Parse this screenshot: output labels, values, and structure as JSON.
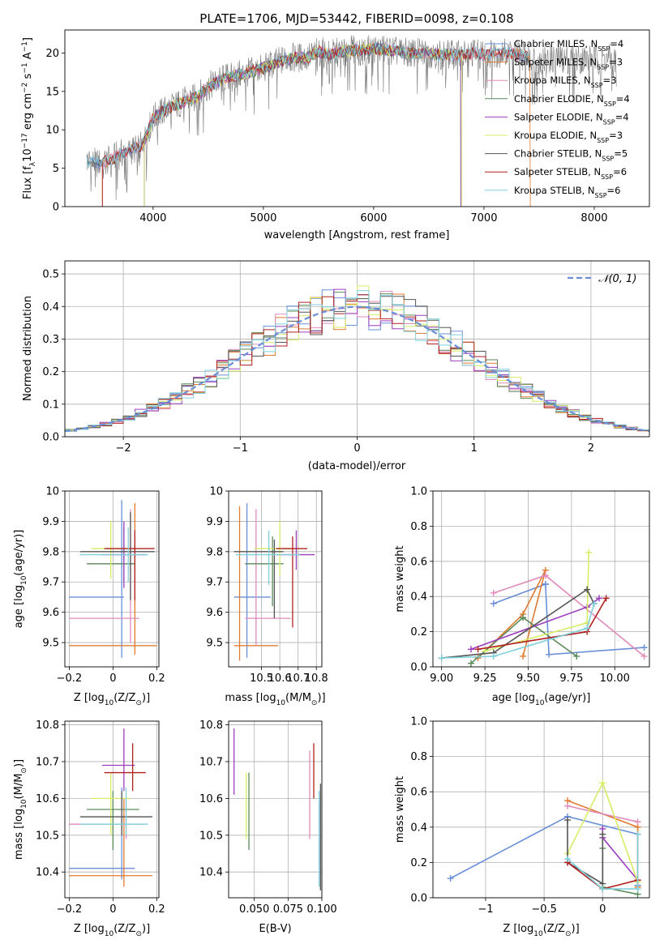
{
  "figure_title": "PLATE=1706, MJD=53442, FIBERID=0098, z=0.108",
  "colors": {
    "chabrier_miles": "#6a8fd8",
    "salpeter_miles": "#e07b30",
    "kroupa_miles": "#e08aba",
    "chabrier_elodie": "#5a8a5a",
    "salpeter_elodie": "#9b3fbf",
    "kroupa_elodie": "#d8ec64",
    "chabrier_stelib": "#555555",
    "salpeter_stelib": "#b02020",
    "kroupa_stelib": "#80d0dc",
    "grid": "#b0b0b0",
    "gaussian": "#6a8fd8"
  },
  "chart_data": [
    {
      "id": "spectrum",
      "type": "line",
      "title": "PLATE=1706, MJD=53442, FIBERID=0098, z=0.108",
      "xlabel": "wavelength [Angstrom, rest frame]",
      "ylabel_parts": [
        "Flux [f",
        "λ",
        "10",
        "−17",
        " erg cm",
        "−2",
        " s",
        "−1",
        " A",
        "−1",
        "]"
      ],
      "xlim": [
        3200,
        8500
      ],
      "ylim": [
        0,
        23
      ],
      "xticks": [
        4000,
        5000,
        6000,
        7000,
        8000
      ],
      "yticks": [
        0,
        5,
        10,
        15,
        20
      ],
      "grid": false,
      "legend_position": "right",
      "continuum": {
        "x": [
          3400,
          3500,
          3600,
          3700,
          3800,
          3900,
          4000,
          4100,
          4200,
          4300,
          4400,
          4500,
          4600,
          4700,
          4800,
          4900,
          5000,
          5100,
          5200,
          5300,
          5400,
          5500,
          5600,
          5700,
          5800,
          5900,
          6000,
          6100,
          6200,
          6300,
          6400,
          6500,
          6600,
          6700,
          6800,
          6900,
          7000,
          7100,
          7200,
          7300,
          7400
        ],
        "y": [
          6.0,
          5.6,
          6.0,
          6.8,
          7.3,
          7.8,
          11.5,
          12.5,
          13.2,
          13.8,
          14.2,
          15.6,
          16.4,
          17.0,
          17.2,
          17.6,
          18.0,
          18.6,
          19.2,
          19.4,
          19.4,
          20.2,
          19.8,
          20.1,
          20.4,
          20.3,
          20.6,
          20.4,
          20.2,
          20.0,
          20.0,
          20.0,
          19.8,
          19.8,
          19.7,
          20.0,
          19.8,
          20.0,
          20.0,
          19.8,
          19.6
        ]
      },
      "series": [
        {
          "name": "Chabrier MILES",
          "nssp": "4",
          "color_key": "chabrier_miles",
          "x_range": [
            3400,
            7400
          ]
        },
        {
          "name": "Salpeter MILES",
          "nssp": "3",
          "color_key": "salpeter_miles",
          "x_range": [
            3540,
            7420
          ]
        },
        {
          "name": "Kroupa MILES",
          "nssp": "3",
          "color_key": "kroupa_miles",
          "x_range": [
            3540,
            7400
          ]
        },
        {
          "name": "Chabrier ELODIE",
          "nssp": "4",
          "color_key": "chabrier_elodie",
          "x_range": [
            3920,
            6790
          ]
        },
        {
          "name": "Salpeter ELODIE",
          "nssp": "4",
          "color_key": "salpeter_elodie",
          "x_range": [
            3920,
            6790
          ]
        },
        {
          "name": "Kroupa ELODIE",
          "nssp": "3",
          "color_key": "kroupa_elodie",
          "x_range": [
            3920,
            6800
          ]
        },
        {
          "name": "Chabrier STELIB",
          "nssp": "5",
          "color_key": "chabrier_stelib",
          "x_range": [
            3400,
            7400
          ]
        },
        {
          "name": "Salpeter STELIB",
          "nssp": "6",
          "color_key": "salpeter_stelib",
          "x_range": [
            3540,
            7400
          ]
        },
        {
          "name": "Kroupa STELIB",
          "nssp": "6",
          "color_key": "kroupa_stelib",
          "x_range": [
            3400,
            7400
          ]
        }
      ]
    },
    {
      "id": "residuals",
      "type": "histogram",
      "xlabel": "(data-model)/error",
      "ylabel": "Normed distribution",
      "xlim": [
        -2.5,
        2.5
      ],
      "ylim": [
        0,
        0.54
      ],
      "xticks": [
        -2,
        -1,
        0,
        1,
        2
      ],
      "yticks": [
        0.0,
        0.1,
        0.2,
        0.3,
        0.4,
        0.5
      ],
      "grid": true,
      "legend_position": "top-right",
      "gaussian_label": "𝒩(0, 1)",
      "bin_width": 0.1,
      "series_keys": [
        "chabrier_miles",
        "salpeter_miles",
        "kroupa_miles",
        "chabrier_elodie",
        "salpeter_elodie",
        "kroupa_elodie",
        "chabrier_stelib",
        "salpeter_stelib",
        "kroupa_stelib"
      ]
    },
    {
      "id": "age-vs-z",
      "type": "errorbar",
      "xlabel_parts": [
        "Z [log",
        "10",
        "(Z/Z",
        "⊙",
        ")]"
      ],
      "ylabel_parts": [
        "age  [log",
        "10",
        "(age/yr)]"
      ],
      "xlim": [
        -0.22,
        0.21
      ],
      "ylim": [
        9.42,
        10.0
      ],
      "xticks": [
        -0.2,
        0.0,
        0.2
      ],
      "yticks": [
        9.5,
        9.6,
        9.7,
        9.8,
        9.9,
        10.0
      ],
      "grid": true,
      "points": [
        {
          "color_key": "chabrier_miles",
          "x": 0.04,
          "y": 9.65,
          "xlo": -0.2,
          "xhi": 0.05,
          "ylo": 9.45,
          "yhi": 9.97
        },
        {
          "color_key": "salpeter_miles",
          "x": 0.1,
          "y": 9.49,
          "xlo": -0.2,
          "xhi": 0.2,
          "ylo": 9.46,
          "yhi": 9.96
        },
        {
          "color_key": "kroupa_miles",
          "x": 0.08,
          "y": 9.58,
          "xlo": -0.2,
          "xhi": 0.12,
          "ylo": 9.5,
          "yhi": 9.94
        },
        {
          "color_key": "chabrier_elodie",
          "x": 0.05,
          "y": 9.76,
          "xlo": -0.12,
          "xhi": 0.1,
          "ylo": 9.7,
          "yhi": 9.88
        },
        {
          "color_key": "salpeter_elodie",
          "x": 0.05,
          "y": 9.79,
          "xlo": -0.05,
          "xhi": 0.15,
          "ylo": 9.68,
          "yhi": 9.9
        },
        {
          "color_key": "kroupa_elodie",
          "x": -0.01,
          "y": 9.81,
          "xlo": -0.1,
          "xhi": 0.09,
          "ylo": 9.71,
          "yhi": 9.9
        },
        {
          "color_key": "chabrier_stelib",
          "x": 0.08,
          "y": 9.8,
          "xlo": -0.15,
          "xhi": 0.19,
          "ylo": 9.64,
          "yhi": 9.93
        },
        {
          "color_key": "salpeter_stelib",
          "x": 0.1,
          "y": 9.81,
          "xlo": -0.04,
          "xhi": 0.19,
          "ylo": 9.64,
          "yhi": 9.87
        },
        {
          "color_key": "kroupa_stelib",
          "x": 0.07,
          "y": 9.79,
          "xlo": -0.15,
          "xhi": 0.16,
          "ylo": 9.7,
          "yhi": 9.88
        }
      ]
    },
    {
      "id": "age-vs-mass",
      "type": "errorbar",
      "xlabel_parts": [
        "mass [log",
        "10",
        "(M/M",
        "⊙",
        ")]"
      ],
      "ylabel_parts": [],
      "xlim": [
        10.32,
        10.83
      ],
      "ylim": [
        9.42,
        10.0
      ],
      "xticks": [
        10.5,
        10.6,
        10.7,
        10.8
      ],
      "yticks": [
        9.5,
        9.6,
        9.7,
        9.8,
        9.9,
        10.0
      ],
      "grid": true,
      "points": [
        {
          "color_key": "chabrier_miles",
          "x": 10.42,
          "y": 9.65,
          "xlo": 10.35,
          "xhi": 10.55,
          "ylo": 9.45,
          "yhi": 9.96
        },
        {
          "color_key": "salpeter_miles",
          "x": 10.38,
          "y": 9.49,
          "xlo": 10.35,
          "xhi": 10.59,
          "ylo": 9.44,
          "yhi": 9.95
        },
        {
          "color_key": "kroupa_miles",
          "x": 10.47,
          "y": 9.58,
          "xlo": 10.41,
          "xhi": 10.66,
          "ylo": 9.49,
          "yhi": 9.94
        },
        {
          "color_key": "chabrier_elodie",
          "x": 10.56,
          "y": 9.76,
          "xlo": 10.41,
          "xhi": 10.62,
          "ylo": 9.62,
          "yhi": 9.85
        },
        {
          "color_key": "salpeter_elodie",
          "x": 10.69,
          "y": 9.79,
          "xlo": 10.58,
          "xhi": 10.79,
          "ylo": 9.74,
          "yhi": 9.87
        },
        {
          "color_key": "kroupa_elodie",
          "x": 10.6,
          "y": 9.81,
          "xlo": 10.46,
          "xhi": 10.67,
          "ylo": 9.72,
          "yhi": 9.9
        },
        {
          "color_key": "chabrier_stelib",
          "x": 10.57,
          "y": 9.8,
          "xlo": 10.35,
          "xhi": 10.62,
          "ylo": 9.58,
          "yhi": 9.84
        },
        {
          "color_key": "salpeter_stelib",
          "x": 10.67,
          "y": 9.81,
          "xlo": 10.58,
          "xhi": 10.75,
          "ylo": 9.55,
          "yhi": 9.85
        },
        {
          "color_key": "kroupa_stelib",
          "x": 10.54,
          "y": 9.79,
          "xlo": 10.36,
          "xhi": 10.71,
          "ylo": 9.69,
          "yhi": 9.87
        }
      ]
    },
    {
      "id": "weight-vs-age",
      "type": "line",
      "xlabel_parts": [
        "age  [log",
        "10",
        "(age/yr)]"
      ],
      "ylabel": "mass weight",
      "xlim": [
        8.95,
        10.2
      ],
      "ylim": [
        0,
        1.0
      ],
      "xticks": [
        9.0,
        9.25,
        9.5,
        9.75,
        10.0
      ],
      "xtick_labels": [
        "9.00",
        "9.25",
        "9.50",
        "9.75",
        "10.00"
      ],
      "yticks": [
        0.0,
        0.2,
        0.4,
        0.6,
        0.8,
        1.0
      ],
      "grid": true,
      "series": [
        {
          "color_key": "chabrier_miles",
          "x": [
            9.6,
            9.3,
            9.6,
            9.62,
            10.17
          ],
          "y": [
            0.47,
            0.36,
            0.47,
            0.07,
            0.11
          ]
        },
        {
          "color_key": "salpeter_miles",
          "x": [
            9.21,
            9.47,
            9.6,
            9.47
          ],
          "y": [
            0.05,
            0.3,
            0.55,
            0.06
          ]
        },
        {
          "color_key": "kroupa_miles",
          "x": [
            9.3,
            9.6,
            10.17
          ],
          "y": [
            0.42,
            0.52,
            0.06
          ]
        },
        {
          "color_key": "chabrier_elodie",
          "x": [
            9.17,
            9.47,
            9.78
          ],
          "y": [
            0.02,
            0.28,
            0.06
          ]
        },
        {
          "color_key": "salpeter_elodie",
          "x": [
            9.17,
            9.84,
            9.91
          ],
          "y": [
            0.1,
            0.34,
            0.39
          ]
        },
        {
          "color_key": "kroupa_elodie",
          "x": [
            9.25,
            9.84,
            9.85
          ],
          "y": [
            0.09,
            0.25,
            0.65
          ]
        },
        {
          "color_key": "chabrier_stelib",
          "x": [
            9.0,
            9.3,
            9.84,
            9.88
          ],
          "y": [
            0.05,
            0.08,
            0.44,
            0.36
          ]
        },
        {
          "color_key": "salpeter_stelib",
          "x": [
            9.21,
            9.84,
            9.95
          ],
          "y": [
            0.1,
            0.2,
            0.39
          ]
        },
        {
          "color_key": "kroupa_stelib",
          "x": [
            9.0,
            9.3,
            9.84,
            9.88
          ],
          "y": [
            0.05,
            0.06,
            0.22,
            0.36
          ]
        }
      ]
    },
    {
      "id": "mass-vs-z",
      "type": "errorbar",
      "xlabel_parts": [
        "Z [log",
        "10",
        "(Z/Z",
        "⊙",
        ")]"
      ],
      "ylabel_parts": [
        "mass [log",
        "10",
        "(M/M",
        "⊙",
        ")]"
      ],
      "xlim": [
        -0.22,
        0.21
      ],
      "ylim": [
        10.33,
        10.81
      ],
      "xticks": [
        -0.2,
        0.0,
        0.2
      ],
      "yticks": [
        10.4,
        10.5,
        10.6,
        10.7,
        10.8
      ],
      "grid": true,
      "points": [
        {
          "color_key": "chabrier_miles",
          "x": 0.04,
          "y": 10.41,
          "xlo": -0.2,
          "xhi": 0.1,
          "ylo": 10.38,
          "yhi": 10.63
        },
        {
          "color_key": "salpeter_miles",
          "x": 0.05,
          "y": 10.39,
          "xlo": -0.2,
          "xhi": 0.18,
          "ylo": 10.36,
          "yhi": 10.6
        },
        {
          "color_key": "kroupa_miles",
          "x": 0.06,
          "y": 10.53,
          "xlo": -0.2,
          "xhi": 0.14,
          "ylo": 10.49,
          "yhi": 10.6
        },
        {
          "color_key": "chabrier_elodie",
          "x": 0.0,
          "y": 10.57,
          "xlo": -0.12,
          "xhi": 0.12,
          "ylo": 10.46,
          "yhi": 10.62
        },
        {
          "color_key": "salpeter_elodie",
          "x": 0.05,
          "y": 10.69,
          "xlo": -0.05,
          "xhi": 0.1,
          "ylo": 10.62,
          "yhi": 10.79
        },
        {
          "color_key": "kroupa_elodie",
          "x": -0.01,
          "y": 10.6,
          "xlo": -0.1,
          "xhi": 0.08,
          "ylo": 10.5,
          "yhi": 10.67
        },
        {
          "color_key": "chabrier_stelib",
          "x": 0.04,
          "y": 10.55,
          "xlo": -0.15,
          "xhi": 0.18,
          "ylo": 10.5,
          "yhi": 10.62
        },
        {
          "color_key": "salpeter_stelib",
          "x": 0.09,
          "y": 10.67,
          "xlo": -0.04,
          "xhi": 0.15,
          "ylo": 10.62,
          "yhi": 10.75
        },
        {
          "color_key": "kroupa_stelib",
          "x": 0.06,
          "y": 10.53,
          "xlo": -0.15,
          "xhi": 0.16,
          "ylo": 10.5,
          "yhi": 10.63
        }
      ]
    },
    {
      "id": "mass-vs-ebv",
      "type": "errorbar",
      "xlabel": "E(B-V)",
      "xlim": [
        0.031,
        0.1
      ],
      "ylim": [
        10.33,
        10.81
      ],
      "xticks": [
        0.05,
        0.075,
        0.1
      ],
      "xtick_labels": [
        "0.050",
        "0.075",
        "0.100"
      ],
      "yticks": [
        10.4,
        10.5,
        10.6,
        10.7,
        10.8
      ],
      "grid": true,
      "points": [
        {
          "color_key": "salpeter_elodie",
          "x": 0.035,
          "ylo": 10.61,
          "yhi": 10.79
        },
        {
          "color_key": "kroupa_elodie",
          "x": 0.044,
          "ylo": 10.49,
          "yhi": 10.67
        },
        {
          "color_key": "chabrier_elodie",
          "x": 0.046,
          "ylo": 10.46,
          "yhi": 10.67
        },
        {
          "color_key": "kroupa_miles",
          "x": 0.091,
          "ylo": 10.49,
          "yhi": 10.73
        },
        {
          "color_key": "salpeter_stelib",
          "x": 0.094,
          "ylo": 10.6,
          "yhi": 10.75
        },
        {
          "color_key": "chabrier_stelib",
          "x": 0.099,
          "ylo": 10.35,
          "yhi": 10.64
        },
        {
          "color_key": "kroupa_stelib",
          "x": 0.098,
          "ylo": 10.36,
          "yhi": 10.62
        }
      ]
    },
    {
      "id": "weight-vs-z",
      "type": "line",
      "xlabel_parts": [
        "Z [log",
        "10",
        "(Z/Z",
        "⊙",
        ")]"
      ],
      "ylabel": "mass weight",
      "xlim": [
        -1.45,
        0.4
      ],
      "ylim": [
        0,
        1.0
      ],
      "xticks": [
        -1.0,
        -0.5,
        0.0
      ],
      "yticks": [
        0.0,
        0.2,
        0.4,
        0.6,
        0.8,
        1.0
      ],
      "grid": true,
      "series": [
        {
          "color_key": "chabrier_miles",
          "x": [
            -1.3,
            -0.3,
            0.3,
            0.3
          ],
          "y": [
            0.11,
            0.46,
            0.36,
            0.07
          ]
        },
        {
          "color_key": "salpeter_miles",
          "x": [
            -0.3,
            0.3,
            0.3
          ],
          "y": [
            0.55,
            0.4,
            0.06
          ]
        },
        {
          "color_key": "kroupa_miles",
          "x": [
            -0.3,
            0.3
          ],
          "y": [
            0.52,
            0.43
          ]
        },
        {
          "color_key": "chabrier_elodie",
          "x": [
            0.0,
            0.0,
            0.3
          ],
          "y": [
            0.28,
            0.06,
            0.02
          ]
        },
        {
          "color_key": "salpeter_elodie",
          "x": [
            0.0,
            0.0,
            0.3
          ],
          "y": [
            0.39,
            0.34,
            0.1
          ]
        },
        {
          "color_key": "kroupa_elodie",
          "x": [
            -0.3,
            0.0,
            0.3
          ],
          "y": [
            0.25,
            0.65,
            0.09
          ]
        },
        {
          "color_key": "chabrier_stelib",
          "x": [
            -0.3,
            -0.3,
            0.0,
            0.0
          ],
          "y": [
            0.44,
            0.2,
            0.08,
            0.36
          ]
        },
        {
          "color_key": "salpeter_stelib",
          "x": [
            -0.3,
            0.0,
            0.3
          ],
          "y": [
            0.2,
            0.05,
            0.1
          ]
        },
        {
          "color_key": "kroupa_stelib",
          "x": [
            -0.3,
            0.0,
            0.3,
            0.3
          ],
          "y": [
            0.22,
            0.05,
            0.05,
            0.36
          ]
        }
      ]
    }
  ]
}
